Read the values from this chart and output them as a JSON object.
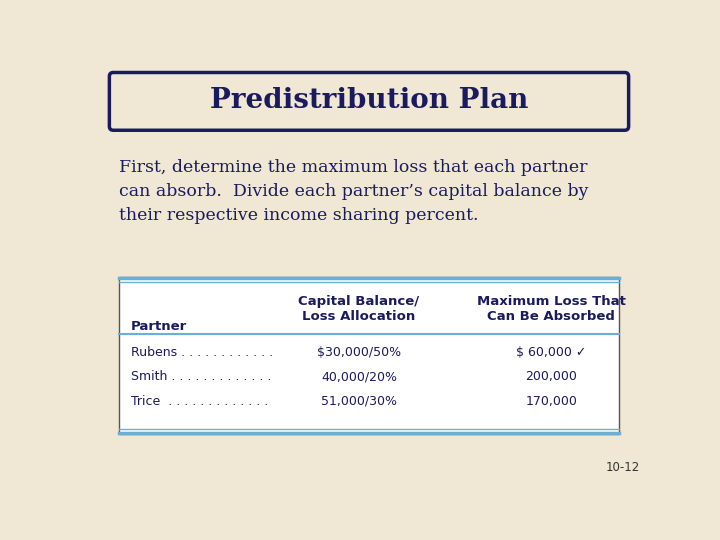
{
  "title": "Predistribution Plan",
  "bg_color": "#f0e8d5",
  "title_box_color": "#f0e8d5",
  "title_border_color": "#1a1a5e",
  "title_text_color": "#1a1a5e",
  "body_text_color": "#1a1a5e",
  "body_text": "First, determine the maximum loss that each partner\ncan absorb.  Divide each partner’s capital balance by\ntheir respective income sharing percent.",
  "table_border_color": "#6ab0d4",
  "table_outer_border": "#555555",
  "table_bg_color": "#ffffff",
  "col_headers": [
    "Partner",
    "Capital Balance/\nLoss Allocation",
    "Maximum Loss That\nCan Be Absorbed"
  ],
  "rows": [
    [
      "Rubens . . . . . . . . . . . .",
      "$30,000/50%",
      "$ 60,000 ✓"
    ],
    [
      "Smith . . . . . . . . . . . . .",
      "40,000/20%",
      "200,000"
    ],
    [
      "Trice  . . . . . . . . . . . . .",
      "51,000/30%",
      "170,000"
    ]
  ],
  "footer_text": "10-12"
}
